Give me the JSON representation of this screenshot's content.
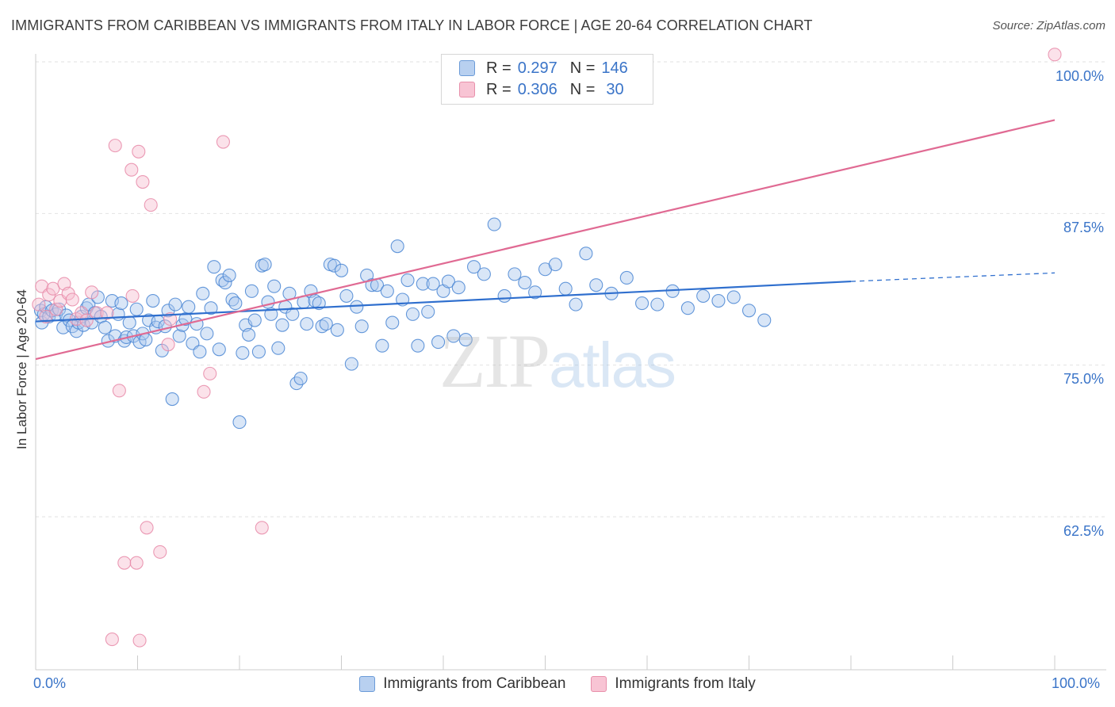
{
  "title": "IMMIGRANTS FROM CARIBBEAN VS IMMIGRANTS FROM ITALY IN LABOR FORCE | AGE 20-64 CORRELATION CHART",
  "source": "Source: ZipAtlas.com",
  "watermark": {
    "zip": "ZIP",
    "atlas": "atlas"
  },
  "legend": {
    "rows": [
      {
        "r_label": "R =",
        "r_value": "0.297",
        "n_label": "N =",
        "n_value": "146"
      },
      {
        "r_label": "R =",
        "r_value": "0.306",
        "n_label": "N =",
        "n_value": "30"
      }
    ]
  },
  "colors": {
    "blue": "#4a86d4",
    "blue_fill": "#aac8ee",
    "blue_line": "#2f6fce",
    "pink": "#e78aa8",
    "pink_fill": "#f6bfd0",
    "pink_line": "#e06a93",
    "grid": "#e2e2e2",
    "axis_text": "#3a74c8"
  },
  "chart_data": {
    "type": "scatter",
    "title": "IMMIGRANTS FROM CARIBBEAN VS IMMIGRANTS FROM ITALY IN LABOR FORCE | AGE 20-64 CORRELATION CHART",
    "xlabel": "",
    "ylabel": "In Labor Force | Age 20-64",
    "xlim": [
      0,
      100
    ],
    "ylim": [
      50,
      100
    ],
    "x_tick_labels": [
      "0.0%",
      "100.0%"
    ],
    "y_tick_values": [
      62.5,
      75.0,
      87.5,
      100.0
    ],
    "y_tick_labels": [
      "62.5%",
      "75.0%",
      "87.5%",
      "100.0%"
    ],
    "grid": true,
    "legend_position": "bottom",
    "series": [
      {
        "name": "Immigrants from Caribbean",
        "color": "blue",
        "R": 0.297,
        "N": 146,
        "trend": {
          "x0": 0,
          "y0": 78.6,
          "x1": 80,
          "y1": 81.9,
          "dash_x1": 100,
          "dash_y1": 82.6
        },
        "points": [
          [
            0.5,
            79.5
          ],
          [
            0.6,
            78.5
          ],
          [
            0.8,
            79.2
          ],
          [
            1.0,
            79.8
          ],
          [
            1.3,
            79.0
          ],
          [
            1.6,
            79.5
          ],
          [
            2.0,
            79.2
          ],
          [
            2.3,
            79.6
          ],
          [
            2.7,
            78.1
          ],
          [
            3.0,
            79.1
          ],
          [
            3.3,
            78.7
          ],
          [
            3.6,
            78.2
          ],
          [
            4.0,
            77.8
          ],
          [
            4.2,
            78.5
          ],
          [
            4.5,
            79.0
          ],
          [
            4.7,
            78.3
          ],
          [
            5.0,
            79.7
          ],
          [
            5.2,
            80.0
          ],
          [
            5.5,
            78.5
          ],
          [
            5.8,
            79.3
          ],
          [
            6.1,
            80.6
          ],
          [
            6.4,
            79.0
          ],
          [
            6.8,
            78.1
          ],
          [
            7.1,
            77.0
          ],
          [
            7.5,
            80.3
          ],
          [
            7.8,
            77.4
          ],
          [
            8.1,
            79.2
          ],
          [
            8.4,
            80.1
          ],
          [
            8.7,
            77.0
          ],
          [
            8.9,
            77.3
          ],
          [
            9.2,
            78.5
          ],
          [
            9.6,
            77.4
          ],
          [
            9.9,
            79.6
          ],
          [
            10.2,
            76.9
          ],
          [
            10.5,
            77.6
          ],
          [
            10.8,
            77.1
          ],
          [
            11.1,
            78.7
          ],
          [
            11.5,
            80.3
          ],
          [
            11.8,
            78.1
          ],
          [
            12.0,
            78.6
          ],
          [
            12.4,
            76.2
          ],
          [
            12.7,
            78.2
          ],
          [
            13.0,
            79.5
          ],
          [
            13.4,
            72.2
          ],
          [
            13.7,
            80.0
          ],
          [
            14.1,
            77.4
          ],
          [
            14.4,
            78.3
          ],
          [
            14.7,
            78.8
          ],
          [
            15.0,
            79.8
          ],
          [
            15.4,
            76.8
          ],
          [
            15.8,
            78.4
          ],
          [
            16.1,
            76.1
          ],
          [
            16.4,
            80.9
          ],
          [
            16.8,
            77.6
          ],
          [
            17.2,
            79.7
          ],
          [
            17.5,
            83.1
          ],
          [
            18.0,
            76.3
          ],
          [
            18.3,
            82.0
          ],
          [
            18.6,
            81.8
          ],
          [
            19.0,
            82.4
          ],
          [
            19.3,
            80.4
          ],
          [
            19.6,
            80.1
          ],
          [
            20.0,
            70.3
          ],
          [
            20.3,
            76.0
          ],
          [
            20.6,
            78.3
          ],
          [
            20.9,
            77.5
          ],
          [
            21.2,
            81.1
          ],
          [
            21.5,
            78.7
          ],
          [
            21.9,
            76.1
          ],
          [
            22.2,
            83.2
          ],
          [
            22.5,
            83.3
          ],
          [
            22.8,
            80.2
          ],
          [
            23.1,
            79.2
          ],
          [
            23.4,
            81.5
          ],
          [
            23.8,
            76.4
          ],
          [
            24.2,
            78.3
          ],
          [
            24.5,
            79.8
          ],
          [
            24.9,
            80.9
          ],
          [
            25.2,
            79.2
          ],
          [
            25.6,
            73.5
          ],
          [
            26.0,
            73.9
          ],
          [
            26.3,
            80.2
          ],
          [
            26.6,
            78.4
          ],
          [
            27.0,
            81.1
          ],
          [
            27.4,
            80.3
          ],
          [
            27.8,
            80.1
          ],
          [
            28.1,
            78.2
          ],
          [
            28.5,
            78.4
          ],
          [
            28.9,
            83.3
          ],
          [
            29.3,
            83.2
          ],
          [
            29.6,
            77.9
          ],
          [
            30.0,
            82.8
          ],
          [
            30.5,
            80.7
          ],
          [
            31.0,
            75.1
          ],
          [
            31.5,
            79.8
          ],
          [
            32.0,
            78.2
          ],
          [
            32.5,
            82.4
          ],
          [
            33.0,
            81.6
          ],
          [
            33.5,
            81.6
          ],
          [
            34.0,
            76.6
          ],
          [
            34.5,
            81.1
          ],
          [
            35.0,
            78.5
          ],
          [
            35.5,
            84.8
          ],
          [
            36.0,
            80.4
          ],
          [
            36.5,
            82.0
          ],
          [
            37.0,
            79.2
          ],
          [
            37.5,
            76.6
          ],
          [
            38.0,
            81.7
          ],
          [
            38.5,
            79.4
          ],
          [
            39.0,
            81.7
          ],
          [
            39.5,
            76.9
          ],
          [
            40.0,
            81.1
          ],
          [
            40.5,
            81.9
          ],
          [
            41.0,
            77.4
          ],
          [
            41.5,
            81.4
          ],
          [
            42.2,
            77.1
          ],
          [
            43.0,
            83.1
          ],
          [
            44.0,
            82.5
          ],
          [
            45.0,
            86.6
          ],
          [
            46.0,
            80.7
          ],
          [
            47.0,
            82.5
          ],
          [
            48.0,
            81.8
          ],
          [
            49.0,
            81.0
          ],
          [
            50.0,
            82.9
          ],
          [
            51.0,
            83.3
          ],
          [
            52.0,
            81.3
          ],
          [
            53.0,
            80.0
          ],
          [
            54.0,
            84.2
          ],
          [
            55.0,
            81.6
          ],
          [
            56.5,
            80.9
          ],
          [
            58.0,
            82.2
          ],
          [
            59.5,
            80.1
          ],
          [
            61.0,
            80.0
          ],
          [
            62.5,
            81.1
          ],
          [
            64.0,
            79.7
          ],
          [
            65.5,
            80.7
          ],
          [
            67.0,
            80.3
          ],
          [
            68.5,
            80.6
          ],
          [
            70.0,
            79.5
          ],
          [
            71.5,
            78.7
          ]
        ]
      },
      {
        "name": "Immigrants from Italy",
        "color": "pink",
        "R": 0.306,
        "N": 30,
        "trend": {
          "x0": 0,
          "y0": 75.5,
          "x1": 100,
          "y1": 95.2
        },
        "points": [
          [
            0.3,
            80.0
          ],
          [
            0.6,
            81.5
          ],
          [
            1.0,
            79.0
          ],
          [
            1.3,
            80.8
          ],
          [
            1.7,
            81.3
          ],
          [
            2.0,
            79.6
          ],
          [
            2.4,
            80.3
          ],
          [
            2.8,
            81.7
          ],
          [
            3.2,
            80.9
          ],
          [
            3.6,
            80.4
          ],
          [
            4.0,
            78.8
          ],
          [
            4.5,
            79.3
          ],
          [
            5.0,
            78.7
          ],
          [
            5.5,
            81.0
          ],
          [
            6.0,
            79.3
          ],
          [
            7.0,
            79.3
          ],
          [
            7.8,
            93.1
          ],
          [
            8.2,
            72.9
          ],
          [
            8.7,
            58.7
          ],
          [
            9.4,
            91.1
          ],
          [
            9.9,
            58.7
          ],
          [
            10.1,
            92.6
          ],
          [
            10.5,
            90.1
          ],
          [
            10.9,
            61.6
          ],
          [
            11.3,
            88.2
          ],
          [
            12.2,
            59.6
          ],
          [
            16.5,
            72.8
          ],
          [
            17.1,
            74.3
          ],
          [
            18.4,
            93.4
          ],
          [
            22.2,
            61.6
          ]
        ]
      }
    ],
    "extra_pink_points": [
      [
        7.5,
        52.4
      ],
      [
        10.2,
        52.3
      ],
      [
        13.2,
        78.8
      ],
      [
        13.0,
        76.7
      ],
      [
        9.5,
        80.7
      ],
      [
        100,
        100.6
      ]
    ]
  },
  "axis": {
    "y_label": "In Labor Force | Age 20-64",
    "x_left": "0.0%",
    "x_right": "100.0%",
    "y_ticks": [
      "100.0%",
      "87.5%",
      "75.0%",
      "62.5%"
    ]
  },
  "legend_bottom": [
    "Immigrants from Caribbean",
    "Immigrants from Italy"
  ]
}
